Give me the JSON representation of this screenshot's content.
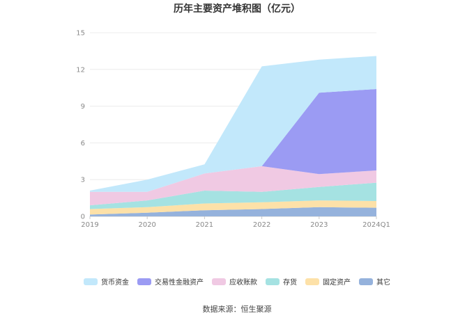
{
  "chart_data": {
    "type": "area",
    "stacked": true,
    "title": "历年主要资产堆积图（亿元）",
    "xlabel": "",
    "ylabel": "",
    "categories": [
      "2019",
      "2020",
      "2021",
      "2022",
      "2023",
      "2024Q1"
    ],
    "ylim": [
      0,
      15
    ],
    "yticks": [
      0,
      3,
      6,
      9,
      12,
      15
    ],
    "grid": true,
    "legend_position": "bottom",
    "series": [
      {
        "name": "其它",
        "color": "#95b2dc",
        "values": [
          0.15,
          0.3,
          0.5,
          0.6,
          0.75,
          0.7
        ]
      },
      {
        "name": "固定资产",
        "color": "#fde1a8",
        "values": [
          0.45,
          0.45,
          0.55,
          0.55,
          0.55,
          0.55
        ]
      },
      {
        "name": "存货",
        "color": "#a5e2e2",
        "values": [
          0.3,
          0.55,
          1.05,
          0.85,
          1.1,
          1.5
        ]
      },
      {
        "name": "应收账款",
        "color": "#f0c9e3",
        "values": [
          1.1,
          0.7,
          1.4,
          2.1,
          1.05,
          1.0
        ]
      },
      {
        "name": "交易性金融资产",
        "color": "#9b9bf3",
        "values": [
          0,
          0,
          0,
          0,
          6.65,
          6.65
        ]
      },
      {
        "name": "货币资金",
        "color": "#c2e8fb",
        "values": [
          0.1,
          1.0,
          0.75,
          8.15,
          2.7,
          2.7
        ]
      }
    ]
  },
  "legend_order": [
    "货币资金",
    "交易性金融资产",
    "应收账款",
    "存货",
    "固定资产",
    "其它"
  ],
  "source_text": "数据来源：恒生聚源"
}
